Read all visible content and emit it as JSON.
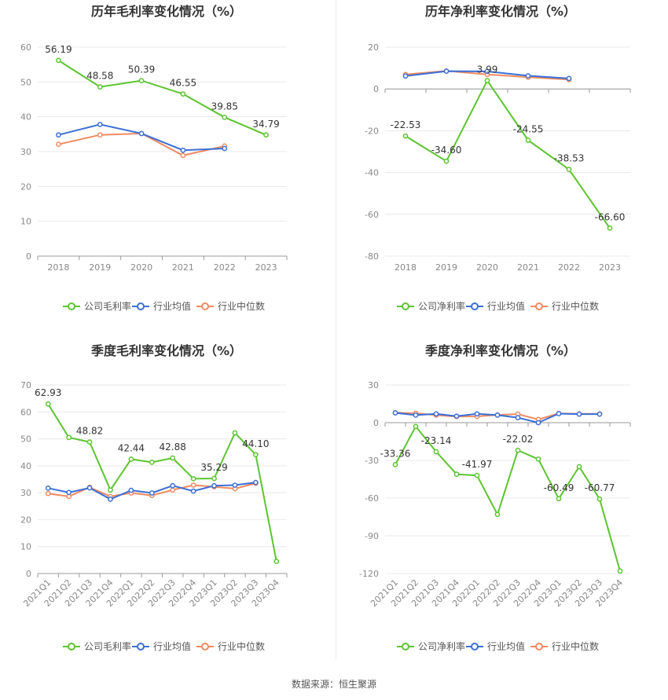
{
  "source_text": "数据来源：恒生聚源",
  "colors": {
    "company": "#5cc42f",
    "avg": "#3b6fd6",
    "median": "#f08a60",
    "grid": "#e8e8e8",
    "axis": "#999999",
    "text": "#333333",
    "tick": "#888888"
  },
  "chart_data": [
    {
      "type": "line",
      "title": "历年毛利率变化情况（%）",
      "categories": [
        "2018",
        "2019",
        "2020",
        "2021",
        "2022",
        "2023"
      ],
      "ylim": [
        0,
        60
      ],
      "yticks": [
        0,
        10,
        20,
        30,
        40,
        50,
        60
      ],
      "grid": true,
      "legend_position": "bottom",
      "label_series": 0,
      "series": [
        {
          "name": "公司毛利率",
          "color": "#5cc42f",
          "values": [
            56.19,
            48.58,
            50.39,
            46.55,
            39.85,
            34.79
          ],
          "labels": [
            "56.19",
            "48.58",
            "50.39",
            "46.55",
            "39.85",
            "34.79"
          ]
        },
        {
          "name": "行业均值",
          "color": "#3b6fd6",
          "values": [
            34.8,
            37.8,
            35.2,
            30.4,
            30.9,
            null
          ]
        },
        {
          "name": "行业中位数",
          "color": "#f08a60",
          "values": [
            32.1,
            34.8,
            35.2,
            28.9,
            31.6,
            null
          ]
        }
      ]
    },
    {
      "type": "line",
      "title": "历年净利率变化情况（%）",
      "categories": [
        "2018",
        "2019",
        "2020",
        "2021",
        "2022",
        "2023"
      ],
      "ylim": [
        -80,
        20
      ],
      "yticks": [
        -80,
        -60,
        -40,
        -20,
        0,
        20
      ],
      "grid": true,
      "legend_position": "bottom",
      "label_series": 0,
      "series": [
        {
          "name": "公司净利率",
          "color": "#5cc42f",
          "values": [
            -22.53,
            -34.6,
            3.99,
            -24.55,
            -38.53,
            -66.6
          ],
          "labels": [
            "-22.53",
            "-34.60",
            "3.99",
            "-24.55",
            "-38.53",
            "-66.60"
          ]
        },
        {
          "name": "行业均值",
          "color": "#3b6fd6",
          "values": [
            6.2,
            8.5,
            8.4,
            6.3,
            5.0,
            null
          ]
        },
        {
          "name": "行业中位数",
          "color": "#f08a60",
          "values": [
            6.9,
            8.6,
            6.9,
            5.6,
            4.5,
            null
          ]
        }
      ]
    },
    {
      "type": "line",
      "title": "季度毛利率变化情况（%）",
      "categories": [
        "2021Q1",
        "2021Q2",
        "2021Q3",
        "2021Q4",
        "2022Q1",
        "2022Q2",
        "2022Q3",
        "2022Q4",
        "2023Q1",
        "2023Q2",
        "2023Q3",
        "2023Q4"
      ],
      "ylim": [
        0,
        70
      ],
      "yticks": [
        0,
        10,
        20,
        30,
        40,
        50,
        60,
        70
      ],
      "grid": true,
      "legend_position": "bottom",
      "label_series": 0,
      "series": [
        {
          "name": "公司毛利率",
          "color": "#5cc42f",
          "values": [
            62.93,
            50.5,
            48.82,
            31.0,
            42.44,
            41.3,
            42.88,
            35.2,
            35.29,
            52.2,
            44.1,
            4.5
          ],
          "labels": [
            "62.93",
            "",
            "48.82",
            "",
            "42.44",
            "",
            "42.88",
            "",
            "35.29",
            "",
            "44.10",
            ""
          ]
        },
        {
          "name": "行业均值",
          "color": "#3b6fd6",
          "values": [
            31.7,
            30.1,
            31.8,
            27.6,
            30.9,
            29.9,
            32.6,
            30.6,
            32.6,
            32.8,
            33.8,
            null
          ]
        },
        {
          "name": "行业中位数",
          "color": "#f08a60",
          "values": [
            29.7,
            28.6,
            32.0,
            28.6,
            29.9,
            29.0,
            31.0,
            32.8,
            32.2,
            31.5,
            33.5,
            null
          ]
        }
      ]
    },
    {
      "type": "line",
      "title": "季度净利率变化情况（%）",
      "categories": [
        "2021Q1",
        "2021Q2",
        "2021Q3",
        "2021Q4",
        "2022Q1",
        "2022Q2",
        "2022Q3",
        "2022Q4",
        "2023Q1",
        "2023Q2",
        "2023Q3",
        "2023Q4"
      ],
      "ylim": [
        -120,
        30
      ],
      "yticks": [
        -120,
        -90,
        -60,
        -30,
        0,
        30
      ],
      "grid": true,
      "legend_position": "bottom",
      "label_series": 0,
      "series": [
        {
          "name": "公司净利率",
          "color": "#5cc42f",
          "values": [
            -33.36,
            -3.0,
            -23.14,
            -41.0,
            -41.97,
            -73.0,
            -22.02,
            -29.0,
            -60.49,
            -35.0,
            -60.77,
            -118.0
          ],
          "labels": [
            "-33.36",
            "",
            "-23.14",
            "",
            "-41.97",
            "",
            "-22.02",
            "",
            "-60.49",
            "",
            "-60.77",
            ""
          ]
        },
        {
          "name": "行业均值",
          "color": "#3b6fd6",
          "values": [
            7.8,
            6.0,
            7.0,
            5.2,
            7.0,
            6.0,
            4.0,
            0.0,
            7.2,
            6.8,
            6.8,
            null
          ]
        },
        {
          "name": "行业中位数",
          "color": "#f08a60",
          "values": [
            8.0,
            7.5,
            6.0,
            4.9,
            5.0,
            6.2,
            6.8,
            2.6,
            7.3,
            7.0,
            7.0,
            null
          ]
        }
      ]
    }
  ]
}
